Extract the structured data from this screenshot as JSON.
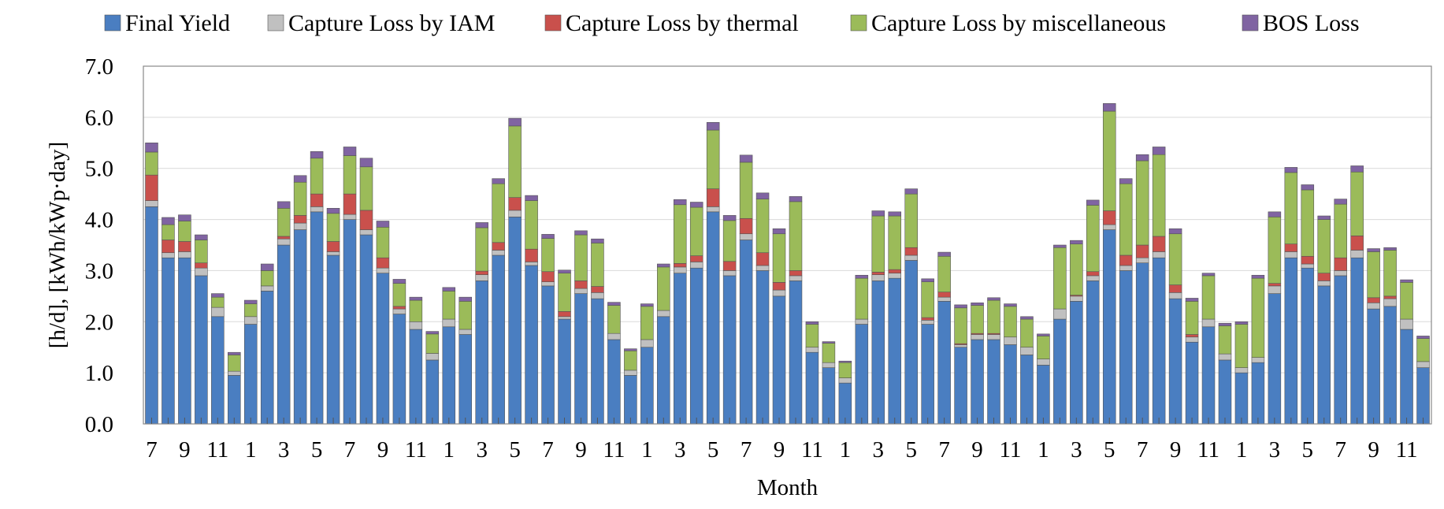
{
  "chart_data": {
    "type": "bar",
    "stacked": true,
    "xlabel": "Month",
    "ylabel": "[h/d], [kWh/kWp·day]",
    "ylim": [
      0,
      7
    ],
    "yticks": [
      "0.0",
      "1.0",
      "2.0",
      "3.0",
      "4.0",
      "5.0",
      "6.0",
      "7.0"
    ],
    "grid": "horizontal",
    "legend_position": "top",
    "categories": [
      "7",
      "8",
      "9",
      "10",
      "11",
      "12",
      "1",
      "2",
      "3",
      "4",
      "5",
      "6",
      "7",
      "8",
      "9",
      "10",
      "11",
      "12",
      "1",
      "2",
      "3",
      "4",
      "5",
      "6",
      "7",
      "8",
      "9",
      "10",
      "11",
      "12",
      "1",
      "2",
      "3",
      "4",
      "5",
      "6",
      "7",
      "8",
      "9",
      "10",
      "11",
      "12",
      "1",
      "2",
      "3",
      "4",
      "5",
      "6",
      "7",
      "8",
      "9",
      "10",
      "11",
      "12",
      "1",
      "2",
      "3",
      "4",
      "5",
      "6",
      "7",
      "8",
      "9",
      "10",
      "11",
      "12",
      "1",
      "2",
      "3",
      "4",
      "5",
      "6",
      "7",
      "8",
      "9",
      "10",
      "11",
      "12"
    ],
    "series": [
      {
        "name": "Final Yield",
        "color": "#4A7EC1",
        "values": [
          4.25,
          3.25,
          3.25,
          2.9,
          2.1,
          0.95,
          1.95,
          2.6,
          3.5,
          3.8,
          4.15,
          3.3,
          4.0,
          3.7,
          2.95,
          2.15,
          1.85,
          1.25,
          1.9,
          1.75,
          2.8,
          3.3,
          4.05,
          3.1,
          2.7,
          2.05,
          2.55,
          2.45,
          1.65,
          0.95,
          1.5,
          2.1,
          2.95,
          3.05,
          4.15,
          2.9,
          3.6,
          3.0,
          2.5,
          2.8,
          1.4,
          1.1,
          0.8,
          1.95,
          2.8,
          2.85,
          3.2,
          1.95,
          2.4,
          1.5,
          1.65,
          1.65,
          1.55,
          1.35,
          1.15,
          2.05,
          2.4,
          2.8,
          3.8,
          3.0,
          3.15,
          3.25,
          2.45,
          1.6,
          1.9,
          1.25,
          1.0,
          1.2,
          2.55,
          3.25,
          3.05,
          2.7,
          2.9,
          3.25,
          2.25,
          2.3,
          1.85,
          1.1
        ]
      },
      {
        "name": "Capture Loss by IAM",
        "color": "#C0C0C0",
        "values": [
          0.12,
          0.1,
          0.12,
          0.15,
          0.18,
          0.08,
          0.15,
          0.1,
          0.12,
          0.13,
          0.1,
          0.07,
          0.1,
          0.1,
          0.1,
          0.1,
          0.15,
          0.13,
          0.15,
          0.1,
          0.12,
          0.1,
          0.13,
          0.07,
          0.08,
          0.05,
          0.1,
          0.12,
          0.12,
          0.1,
          0.15,
          0.12,
          0.12,
          0.12,
          0.1,
          0.1,
          0.12,
          0.1,
          0.12,
          0.1,
          0.1,
          0.1,
          0.1,
          0.1,
          0.12,
          0.1,
          0.1,
          0.08,
          0.08,
          0.05,
          0.1,
          0.1,
          0.15,
          0.15,
          0.12,
          0.2,
          0.1,
          0.1,
          0.1,
          0.1,
          0.1,
          0.12,
          0.12,
          0.1,
          0.15,
          0.12,
          0.1,
          0.1,
          0.15,
          0.12,
          0.08,
          0.1,
          0.1,
          0.15,
          0.12,
          0.15,
          0.2,
          0.12
        ]
      },
      {
        "name": "Capture Loss by thermal",
        "color": "#C9504C",
        "values": [
          0.5,
          0.25,
          0.2,
          0.1,
          0.0,
          0.0,
          0.0,
          0.0,
          0.05,
          0.15,
          0.25,
          0.2,
          0.4,
          0.38,
          0.2,
          0.05,
          0.0,
          0.0,
          0.0,
          0.0,
          0.07,
          0.15,
          0.25,
          0.25,
          0.2,
          0.1,
          0.15,
          0.12,
          0.0,
          0.0,
          0.0,
          0.0,
          0.07,
          0.12,
          0.35,
          0.18,
          0.3,
          0.25,
          0.15,
          0.1,
          0.0,
          0.0,
          0.0,
          0.0,
          0.05,
          0.07,
          0.15,
          0.05,
          0.1,
          0.02,
          0.02,
          0.02,
          0.0,
          0.0,
          0.0,
          0.0,
          0.02,
          0.08,
          0.27,
          0.2,
          0.25,
          0.3,
          0.15,
          0.05,
          0.0,
          0.0,
          0.0,
          0.0,
          0.05,
          0.15,
          0.15,
          0.15,
          0.25,
          0.28,
          0.1,
          0.05,
          0.0,
          0.0
        ]
      },
      {
        "name": "Capture Loss by miscellaneous",
        "color": "#9BBB59",
        "values": [
          0.45,
          0.3,
          0.4,
          0.45,
          0.2,
          0.32,
          0.25,
          0.3,
          0.55,
          0.65,
          0.7,
          0.55,
          0.75,
          0.85,
          0.6,
          0.45,
          0.42,
          0.38,
          0.55,
          0.55,
          0.85,
          1.15,
          1.4,
          0.95,
          0.65,
          0.75,
          0.9,
          0.85,
          0.55,
          0.38,
          0.65,
          0.85,
          1.15,
          0.95,
          1.15,
          0.8,
          1.1,
          1.05,
          0.95,
          1.35,
          0.45,
          0.38,
          0.3,
          0.8,
          1.1,
          1.05,
          1.05,
          0.7,
          0.7,
          0.7,
          0.55,
          0.65,
          0.6,
          0.55,
          0.45,
          1.2,
          1.0,
          1.3,
          1.95,
          1.4,
          1.65,
          1.6,
          1.0,
          0.65,
          0.85,
          0.55,
          0.85,
          1.55,
          1.3,
          1.4,
          1.3,
          1.05,
          1.05,
          1.25,
          0.9,
          0.9,
          0.72,
          0.45
        ]
      },
      {
        "name": "BOS Loss",
        "color": "#8064A2",
        "values": [
          0.18,
          0.14,
          0.12,
          0.1,
          0.07,
          0.05,
          0.07,
          0.13,
          0.13,
          0.13,
          0.13,
          0.1,
          0.17,
          0.17,
          0.12,
          0.08,
          0.06,
          0.05,
          0.07,
          0.08,
          0.1,
          0.1,
          0.15,
          0.1,
          0.08,
          0.06,
          0.08,
          0.08,
          0.06,
          0.04,
          0.05,
          0.06,
          0.1,
          0.1,
          0.15,
          0.1,
          0.14,
          0.12,
          0.1,
          0.1,
          0.05,
          0.03,
          0.03,
          0.06,
          0.1,
          0.08,
          0.1,
          0.06,
          0.08,
          0.06,
          0.05,
          0.05,
          0.05,
          0.05,
          0.04,
          0.05,
          0.07,
          0.1,
          0.15,
          0.1,
          0.12,
          0.15,
          0.1,
          0.06,
          0.05,
          0.05,
          0.05,
          0.06,
          0.1,
          0.1,
          0.1,
          0.07,
          0.1,
          0.12,
          0.06,
          0.05,
          0.05,
          0.05
        ]
      }
    ]
  },
  "x_tick_labels": [
    "7",
    "9",
    "11",
    "1",
    "3",
    "5",
    "7",
    "9",
    "11",
    "1",
    "3",
    "5",
    "7",
    "9",
    "11",
    "1",
    "3",
    "5",
    "7",
    "9",
    "11",
    "1",
    "3",
    "5",
    "7",
    "9",
    "11",
    "1",
    "3",
    "5",
    "7",
    "9",
    "11",
    "1",
    "3",
    "5",
    "7",
    "9",
    "11"
  ]
}
